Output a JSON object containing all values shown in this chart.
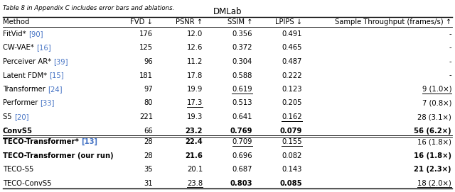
{
  "title": "DMLab",
  "caption": "Table 8 in Appendix C includes error bars and ablations.",
  "columns": [
    "Method",
    "FVD ↓",
    "PSNR ↑",
    "SSIM ↑",
    "LPIPS ↓",
    "Sample Throughput (frames/s) ↑"
  ],
  "rows_group1": [
    [
      "FitVid* ",
      "[90]",
      "176",
      "12.0",
      "0.356",
      "0.491",
      "-"
    ],
    [
      "CW-VAE* ",
      "[16]",
      "125",
      "12.6",
      "0.372",
      "0.465",
      "-"
    ],
    [
      "Perceiver AR* ",
      "[39]",
      "96",
      "11.2",
      "0.304",
      "0.487",
      "-"
    ],
    [
      "Latent FDM* ",
      "[15]",
      "181",
      "17.8",
      "0.588",
      "0.222",
      "-"
    ],
    [
      "Transformer ",
      "[24]",
      "97",
      "19.9",
      "0.619",
      "0.123",
      "9 (1.0×)"
    ],
    [
      "Performer ",
      "[33]",
      "80",
      "17.3",
      "0.513",
      "0.205",
      "7 (0.8×)"
    ],
    [
      "S5 ",
      "[20]",
      "221",
      "19.3",
      "0.641",
      "0.162",
      "28 (3.1×)"
    ],
    [
      "ConvS5",
      "",
      "66",
      "23.2",
      "0.769",
      "0.079",
      "56 (6.2×)"
    ]
  ],
  "rows_group2": [
    [
      "TECO-Transformer* ",
      "[13]",
      "28",
      "22.4",
      "0.709",
      "0.155",
      "16 (1.8×)"
    ],
    [
      "TECO-Transformer (our run)",
      "",
      "28",
      "21.6",
      "0.696",
      "0.082",
      "16 (1.8×)"
    ],
    [
      "TECO-S5",
      "",
      "35",
      "20.1",
      "0.687",
      "0.143",
      "21 (2.3×)"
    ],
    [
      "TECO-ConvS5",
      "",
      "31",
      "23.8",
      "0.803",
      "0.085",
      "18 (2.0×)"
    ]
  ],
  "bold_group1": [
    [
      false,
      false,
      false,
      false,
      false,
      false,
      false
    ],
    [
      false,
      false,
      false,
      false,
      false,
      false,
      false
    ],
    [
      false,
      false,
      false,
      false,
      false,
      false,
      false
    ],
    [
      false,
      false,
      false,
      false,
      false,
      false,
      false
    ],
    [
      false,
      false,
      false,
      false,
      false,
      false,
      false
    ],
    [
      false,
      false,
      false,
      false,
      false,
      false,
      false
    ],
    [
      false,
      false,
      false,
      false,
      false,
      false,
      false
    ],
    [
      true,
      false,
      true,
      true,
      true,
      true,
      true
    ]
  ],
  "bold_group2": [
    [
      true,
      false,
      true,
      false,
      false,
      false,
      false
    ],
    [
      true,
      false,
      true,
      false,
      false,
      true,
      false
    ],
    [
      false,
      false,
      false,
      false,
      false,
      false,
      true
    ],
    [
      false,
      false,
      false,
      true,
      true,
      false,
      false
    ]
  ],
  "underline_group1": [
    [
      false,
      false,
      false,
      false,
      false,
      false,
      false
    ],
    [
      false,
      false,
      false,
      false,
      false,
      false,
      false
    ],
    [
      false,
      false,
      false,
      false,
      false,
      false,
      false
    ],
    [
      false,
      false,
      false,
      false,
      false,
      false,
      false
    ],
    [
      false,
      false,
      false,
      true,
      false,
      true,
      false
    ],
    [
      false,
      false,
      true,
      false,
      false,
      false,
      false
    ],
    [
      false,
      false,
      false,
      false,
      true,
      false,
      true
    ],
    [
      false,
      false,
      false,
      false,
      false,
      false,
      false
    ]
  ],
  "underline_group2": [
    [
      false,
      false,
      false,
      true,
      true,
      false,
      false
    ],
    [
      false,
      false,
      false,
      false,
      false,
      false,
      false
    ],
    [
      false,
      false,
      false,
      false,
      false,
      false,
      false
    ],
    [
      false,
      false,
      true,
      false,
      false,
      true,
      true
    ]
  ],
  "throughput_bold_num_group1": [
    false,
    false,
    false,
    false,
    false,
    false,
    false,
    true
  ],
  "throughput_bold_num_group2": [
    false,
    false,
    true,
    false
  ],
  "ref_color": "#4472C4"
}
